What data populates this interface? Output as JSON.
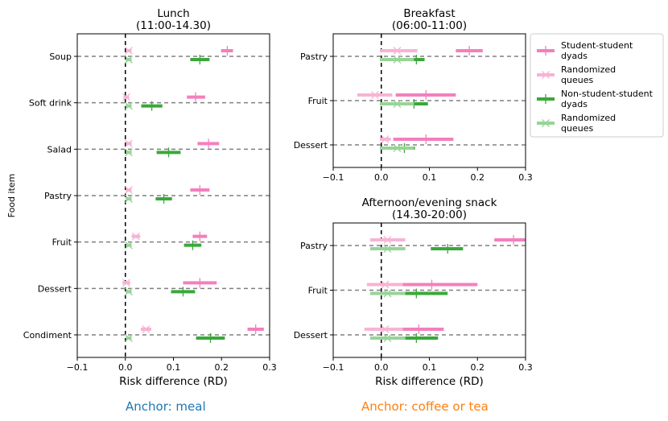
{
  "colors": {
    "student": "#f47fbd",
    "randomized_student": "#f7b3d4",
    "non_student": "#3aa83a",
    "randomized_non_student": "#98d498",
    "anchor_meal": "#1f77b4",
    "anchor_coffee": "#ff7f0e"
  },
  "legend": [
    {
      "label_lines": [
        "Student-student",
        "dyads"
      ],
      "style": "bar",
      "color_key": "student"
    },
    {
      "label_lines": [
        "Randomized",
        " queues"
      ],
      "style": "x",
      "color_key": "randomized_student"
    },
    {
      "label_lines": [
        "Non-student-student",
        "dyads"
      ],
      "style": "bar",
      "color_key": "non_student"
    },
    {
      "label_lines": [
        "Randomized",
        " queues"
      ],
      "style": "x",
      "color_key": "randomized_non_student"
    }
  ],
  "shared_ylabel": "Food item",
  "anchor_labels": {
    "meal": "Anchor: meal",
    "coffee": "Anchor: coffee or tea"
  },
  "chart_data": [
    {
      "id": "lunch",
      "type": "scatter",
      "title_lines": [
        "Lunch",
        "(11:00-14.30)"
      ],
      "xlabel": "Risk difference (RD)",
      "ylabel": "Food item",
      "xlim": [
        -0.1,
        0.3
      ],
      "xticks": [
        -0.1,
        0.0,
        0.1,
        0.2,
        0.3
      ],
      "xtick_labels": [
        "−0.1",
        "0.0",
        "0.1",
        "0.2",
        "0.3"
      ],
      "categories": [
        "Soup",
        "Soft drink",
        "Salad",
        "Pastry",
        "Fruit",
        "Dessert",
        "Condiment"
      ],
      "series": [
        {
          "name": "Student-student dyads",
          "key": "student",
          "marker": "|",
          "points": [
            [
              0.212,
              0.199,
              0.224
            ],
            [
              0.146,
              0.128,
              0.166
            ],
            [
              0.173,
              0.15,
              0.195
            ],
            [
              0.155,
              0.135,
              0.175
            ],
            [
              0.155,
              0.14,
              0.17
            ],
            [
              0.155,
              0.12,
              0.19
            ],
            [
              0.271,
              0.254,
              0.288
            ]
          ]
        },
        {
          "name": "Randomized queues",
          "key": "randomized_student",
          "marker": "x",
          "points": [
            [
              0.007,
              0.001,
              0.013
            ],
            [
              0.002,
              -0.004,
              0.008
            ],
            [
              0.007,
              0.001,
              0.013
            ],
            [
              0.007,
              0.001,
              0.013
            ],
            [
              0.022,
              0.013,
              0.031
            ],
            [
              0.002,
              -0.006,
              0.01
            ],
            [
              0.043,
              0.032,
              0.054
            ]
          ]
        },
        {
          "name": "Non-student-student dyads",
          "key": "non_student",
          "marker": "|",
          "points": [
            [
              0.155,
              0.135,
              0.175
            ],
            [
              0.055,
              0.033,
              0.077
            ],
            [
              0.09,
              0.065,
              0.115
            ],
            [
              0.08,
              0.063,
              0.097
            ],
            [
              0.14,
              0.122,
              0.158
            ],
            [
              0.12,
              0.095,
              0.145
            ],
            [
              0.177,
              0.147,
              0.207
            ]
          ]
        },
        {
          "name": "Randomized queues",
          "key": "randomized_non_student",
          "marker": "x",
          "points": [
            [
              0.007,
              0.001,
              0.013
            ],
            [
              0.007,
              0.001,
              0.013
            ],
            [
              0.007,
              0.001,
              0.013
            ],
            [
              0.007,
              0.001,
              0.013
            ],
            [
              0.007,
              0.001,
              0.013
            ],
            [
              0.007,
              0.001,
              0.013
            ],
            [
              0.007,
              0.001,
              0.013
            ]
          ]
        }
      ]
    },
    {
      "id": "breakfast",
      "type": "scatter",
      "title_lines": [
        "Breakfast",
        "(06:00-11:00)"
      ],
      "xlabel": "",
      "ylabel": "",
      "xlim": [
        -0.1,
        0.3
      ],
      "xticks": [
        -0.1,
        0.0,
        0.1,
        0.2,
        0.3
      ],
      "xtick_labels": [
        "−0.1",
        "0.0",
        "0.1",
        "0.2",
        "0.3"
      ],
      "categories": [
        "Pastry",
        "Fruit",
        "Dessert"
      ],
      "series": [
        {
          "name": "Student-student dyads",
          "key": "student",
          "marker": "|",
          "points": [
            [
              0.183,
              0.155,
              0.211
            ],
            [
              0.093,
              0.03,
              0.155
            ],
            [
              0.093,
              0.025,
              0.15
            ]
          ]
        },
        {
          "name": "Randomized queues",
          "key": "randomized_student",
          "marker": "x",
          "points": [
            [
              0.033,
              -0.003,
              0.075
            ],
            [
              -0.013,
              -0.05,
              0.023
            ],
            [
              0.008,
              -0.003,
              0.02
            ]
          ]
        },
        {
          "name": "Non-student-student dyads",
          "key": "non_student",
          "marker": "|",
          "points": [
            [
              0.073,
              0.057,
              0.09
            ],
            [
              0.068,
              0.04,
              0.097
            ],
            [
              0.048,
              0.027,
              0.07
            ]
          ]
        },
        {
          "name": "Randomized queues",
          "key": "randomized_non_student",
          "marker": "x",
          "points": [
            [
              0.033,
              -0.003,
              0.068
            ],
            [
              0.033,
              -0.003,
              0.068
            ],
            [
              0.033,
              -0.003,
              0.068
            ]
          ]
        }
      ]
    },
    {
      "id": "snack",
      "type": "scatter",
      "title_lines": [
        "Afternoon/evening snack",
        "(14.30-20:00)"
      ],
      "xlabel": "Risk difference (RD)",
      "ylabel": "",
      "xlim": [
        -0.1,
        0.3
      ],
      "xticks": [
        -0.1,
        0.0,
        0.1,
        0.2,
        0.3
      ],
      "xtick_labels": [
        "−0.1",
        "0.0",
        "0.1",
        "0.2",
        "0.3"
      ],
      "categories": [
        "Pastry",
        "Fruit",
        "Dessert"
      ],
      "series": [
        {
          "name": "Student-student dyads",
          "key": "student",
          "marker": "|",
          "points": [
            [
              0.275,
              0.235,
              0.3
            ],
            [
              0.105,
              0.013,
              0.2
            ],
            [
              0.078,
              0.025,
              0.13
            ]
          ]
        },
        {
          "name": "Randomized queues",
          "key": "randomized_student",
          "marker": "x",
          "points": [
            [
              0.013,
              -0.023,
              0.05
            ],
            [
              0.008,
              -0.03,
              0.045
            ],
            [
              0.008,
              -0.035,
              0.045
            ]
          ]
        },
        {
          "name": "Non-student-student dyads",
          "key": "non_student",
          "marker": "|",
          "points": [
            [
              0.138,
              0.103,
              0.17
            ],
            [
              0.073,
              0.008,
              0.138
            ],
            [
              0.073,
              0.028,
              0.118
            ]
          ]
        },
        {
          "name": "Randomized queues",
          "key": "randomized_non_student",
          "marker": "x",
          "points": [
            [
              0.013,
              -0.023,
              0.05
            ],
            [
              0.013,
              -0.023,
              0.05
            ],
            [
              0.013,
              -0.023,
              0.05
            ]
          ]
        }
      ]
    }
  ]
}
